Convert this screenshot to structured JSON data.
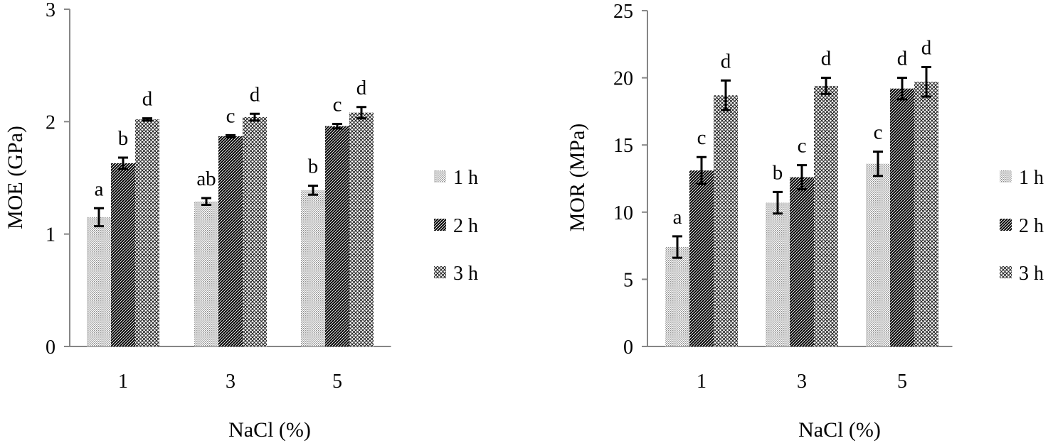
{
  "chart_data": [
    {
      "type": "bar",
      "xlabel": "NaCl (%)",
      "ylabel": "MOE (GPa)",
      "ylim": [
        0,
        3
      ],
      "yticks": [
        0,
        1,
        2,
        3
      ],
      "categories": [
        "1",
        "3",
        "5"
      ],
      "legend_position": "right",
      "series": [
        {
          "name": "1 h",
          "pattern": "dots",
          "values": [
            1.15,
            1.29,
            1.39
          ],
          "errors": [
            0.08,
            0.03,
            0.04
          ],
          "labels": [
            "a",
            "ab",
            "b"
          ]
        },
        {
          "name": "2 h",
          "pattern": "diagonal-lines",
          "values": [
            1.63,
            1.87,
            1.96
          ],
          "errors": [
            0.05,
            0.01,
            0.02
          ],
          "labels": [
            "b",
            "c",
            "c"
          ]
        },
        {
          "name": "3 h",
          "pattern": "crosshatch",
          "values": [
            2.02,
            2.04,
            2.08
          ],
          "errors": [
            0.01,
            0.03,
            0.05
          ],
          "labels": [
            "d",
            "d",
            "d"
          ]
        }
      ]
    },
    {
      "type": "bar",
      "xlabel": "NaCl (%)",
      "ylabel": "MOR (MPa)",
      "ylim": [
        0,
        25
      ],
      "yticks": [
        0,
        5,
        10,
        15,
        20,
        25
      ],
      "categories": [
        "1",
        "3",
        "5"
      ],
      "legend_position": "right",
      "series": [
        {
          "name": "1 h",
          "pattern": "dots",
          "values": [
            7.4,
            10.7,
            13.6
          ],
          "errors": [
            0.8,
            0.8,
            0.9
          ],
          "labels": [
            "a",
            "b",
            "c"
          ]
        },
        {
          "name": "2 h",
          "pattern": "diagonal-lines",
          "values": [
            13.1,
            12.6,
            19.2
          ],
          "errors": [
            1.0,
            0.9,
            0.8
          ],
          "labels": [
            "c",
            "c",
            "d"
          ]
        },
        {
          "name": "3 h",
          "pattern": "crosshatch",
          "values": [
            18.7,
            19.4,
            19.7
          ],
          "errors": [
            1.1,
            0.6,
            1.1
          ],
          "labels": [
            "d",
            "d",
            "d"
          ]
        }
      ]
    }
  ]
}
